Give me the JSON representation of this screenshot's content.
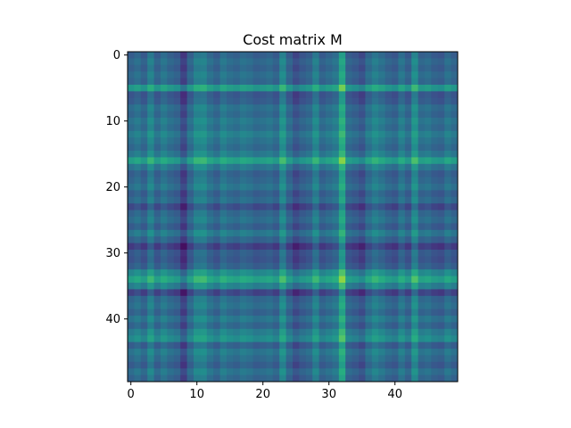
{
  "chart_data": {
    "type": "heatmap",
    "title": "Cost matrix M",
    "xlabel": "",
    "ylabel": "",
    "rows": 50,
    "cols": 50,
    "colormap": "viridis",
    "xlim": [
      -0.5,
      49.5
    ],
    "ylim": [
      49.5,
      -0.5
    ],
    "x_ticks": [
      0,
      10,
      20,
      30,
      40
    ],
    "y_ticks": [
      0,
      10,
      20,
      30,
      40
    ],
    "row_profile": [
      0.3,
      0.38,
      0.32,
      0.4,
      0.35,
      0.72,
      0.24,
      0.28,
      0.42,
      0.36,
      0.46,
      0.4,
      0.52,
      0.44,
      0.37,
      0.49,
      0.78,
      0.46,
      0.3,
      0.36,
      0.44,
      0.3,
      0.38,
      0.16,
      0.34,
      0.41,
      0.29,
      0.48,
      0.32,
      0.08,
      0.26,
      0.22,
      0.3,
      0.6,
      0.8,
      0.54,
      0.12,
      0.36,
      0.42,
      0.32,
      0.46,
      0.34,
      0.52,
      0.62,
      0.3,
      0.46,
      0.38,
      0.29,
      0.43,
      0.34
    ],
    "col_profile": [
      0.38,
      0.46,
      0.36,
      0.58,
      0.38,
      0.5,
      0.4,
      0.34,
      0.14,
      0.4,
      0.58,
      0.6,
      0.46,
      0.37,
      0.52,
      0.44,
      0.4,
      0.48,
      0.44,
      0.37,
      0.4,
      0.44,
      0.36,
      0.64,
      0.38,
      0.22,
      0.32,
      0.38,
      0.58,
      0.36,
      0.43,
      0.5,
      0.86,
      0.38,
      0.32,
      0.24,
      0.44,
      0.56,
      0.48,
      0.38,
      0.33,
      0.5,
      0.36,
      0.66,
      0.4,
      0.44,
      0.36,
      0.33,
      0.46,
      0.38
    ],
    "value_range": [
      0,
      1
    ]
  }
}
